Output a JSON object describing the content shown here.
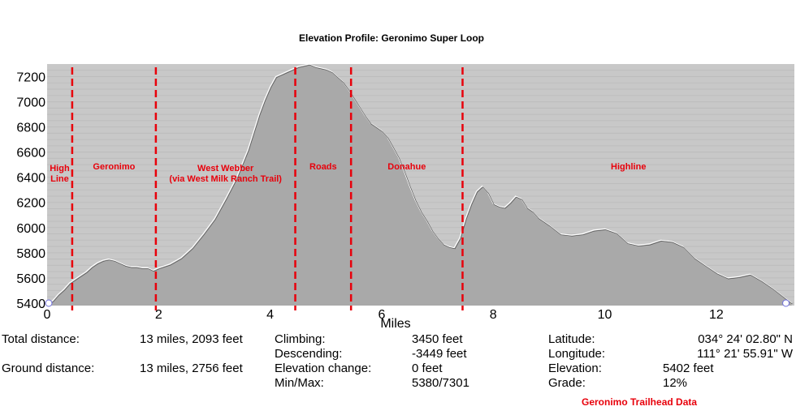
{
  "chart_data": {
    "type": "area",
    "title": "Elevation Profile: Geronimo Super Loop",
    "xlabel": "Miles",
    "ylabel": "",
    "xlim": [
      0,
      13.4
    ],
    "ylim": [
      5380,
      7300
    ],
    "x_ticks": [
      0,
      2,
      4,
      6,
      8,
      10,
      12
    ],
    "y_ticks": [
      5400,
      5600,
      5800,
      6000,
      6200,
      6400,
      6600,
      6800,
      7000,
      7200
    ],
    "grid": true,
    "colors": {
      "fill": "#a9a9a9",
      "line": "#ffffff",
      "background": "#c8c8c8",
      "marker": "#e8000b"
    },
    "series": [
      {
        "x": [
          0,
          0.1,
          0.2,
          0.3,
          0.4,
          0.5,
          0.6,
          0.7,
          0.8,
          0.9,
          1.0,
          1.1,
          1.2,
          1.3,
          1.4,
          1.5,
          1.6,
          1.7,
          1.8,
          1.9,
          2.0,
          2.2,
          2.4,
          2.6,
          2.8,
          3.0,
          3.2,
          3.4,
          3.6,
          3.8,
          3.9,
          4.0,
          4.1,
          4.2,
          4.3,
          4.4,
          4.5,
          4.6,
          4.7,
          4.8,
          4.9,
          5.0,
          5.1,
          5.2,
          5.3,
          5.4,
          5.5,
          5.6,
          5.7,
          5.8,
          5.9,
          6.0,
          6.1,
          6.2,
          6.3,
          6.4,
          6.5,
          6.6,
          6.7,
          6.8,
          6.9,
          7.0,
          7.1,
          7.2,
          7.3,
          7.4,
          7.5,
          7.6,
          7.7,
          7.8,
          7.9,
          8.0,
          8.1,
          8.2,
          8.3,
          8.4,
          8.5,
          8.6,
          8.7,
          8.8,
          8.9,
          9.0,
          9.2,
          9.4,
          9.6,
          9.8,
          10.0,
          10.2,
          10.4,
          10.6,
          10.8,
          11.0,
          11.2,
          11.4,
          11.6,
          11.8,
          12.0,
          12.2,
          12.4,
          12.6,
          12.8,
          13.0,
          13.2,
          13.35
        ],
        "y": [
          5390,
          5420,
          5470,
          5510,
          5560,
          5590,
          5620,
          5650,
          5690,
          5720,
          5740,
          5750,
          5740,
          5720,
          5700,
          5690,
          5690,
          5680,
          5680,
          5660,
          5680,
          5710,
          5760,
          5840,
          5950,
          6070,
          6230,
          6400,
          6620,
          6900,
          7020,
          7120,
          7200,
          7220,
          7240,
          7260,
          7280,
          7290,
          7300,
          7280,
          7270,
          7260,
          7240,
          7200,
          7160,
          7100,
          7030,
          6960,
          6890,
          6830,
          6800,
          6770,
          6720,
          6640,
          6560,
          6450,
          6330,
          6220,
          6130,
          6060,
          5980,
          5920,
          5870,
          5850,
          5840,
          5920,
          6070,
          6190,
          6290,
          6330,
          6280,
          6190,
          6170,
          6160,
          6200,
          6250,
          6230,
          6160,
          6130,
          6080,
          6050,
          6020,
          5950,
          5940,
          5950,
          5980,
          5990,
          5960,
          5880,
          5860,
          5870,
          5900,
          5890,
          5850,
          5760,
          5700,
          5640,
          5600,
          5610,
          5630,
          5580,
          5520,
          5450,
          5400
        ]
      }
    ],
    "segments": [
      {
        "name": "High Line",
        "start": 0,
        "end": 0.45
      },
      {
        "name": "Geronimo",
        "start": 0.45,
        "end": 1.95
      },
      {
        "name": "West Webber (via West Milk Ranch Trail)",
        "start": 1.95,
        "end": 4.45
      },
      {
        "name": "Roads",
        "start": 4.45,
        "end": 5.45
      },
      {
        "name": "Donahue",
        "start": 5.45,
        "end": 7.45
      },
      {
        "name": "Highline",
        "start": 7.45,
        "end": 13.4
      }
    ],
    "segment_boundaries": [
      0.45,
      1.95,
      4.45,
      5.45,
      7.45
    ],
    "segment_labels": [
      {
        "lines": [
          "High",
          "Line"
        ]
      },
      {
        "lines": [
          "Geronimo"
        ]
      },
      {
        "lines": [
          "West Webber",
          "(via West Milk Ranch Trail)"
        ]
      },
      {
        "lines": [
          "Roads"
        ]
      },
      {
        "lines": [
          "Donahue"
        ]
      },
      {
        "lines": [
          "Highline"
        ]
      }
    ]
  },
  "stats": {
    "total_distance_label": "Total distance:",
    "total_distance": "13 miles, 2093 feet",
    "ground_distance_label": "Ground distance:",
    "ground_distance": "13 miles, 2756 feet",
    "climbing_label": "Climbing:",
    "climbing": "3450 feet",
    "descending_label": "Descending:",
    "descending": "-3449 feet",
    "elevation_change_label": "Elevation change:",
    "elevation_change": "0 feet",
    "minmax_label": "Min/Max:",
    "minmax": "5380/7301",
    "latitude_label": "Latitude:",
    "latitude": "034° 24' 02.80\" N",
    "longitude_label": "Longitude:",
    "longitude": "111° 21' 55.91\" W",
    "elevation_label": "Elevation:",
    "elevation": "5402 feet",
    "grade_label": "Grade:",
    "grade": "12%"
  },
  "footer_note": "Geronimo Trailhead Data"
}
